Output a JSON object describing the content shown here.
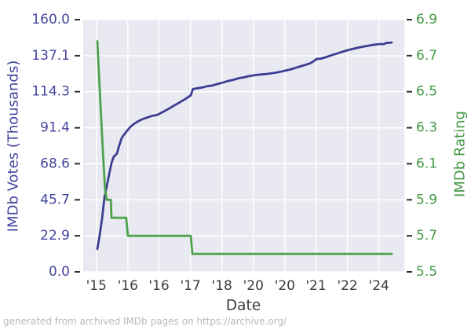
{
  "chart_data": {
    "type": "line",
    "title": "",
    "xlabel": "Date",
    "footer_note": "generated from archived IMDb pages on https://archive.org/",
    "grid": true,
    "legend": "none",
    "plot_bg": "#e9e9f1",
    "grid_color": "#ffffff",
    "tick_mark_color": "#2e2e2e",
    "x_axis": {
      "label": "Date",
      "tick_labels": [
        "'15",
        "'16",
        "'16",
        "'17",
        "'18",
        "'20",
        "'20",
        "'21",
        "'22",
        "'24"
      ],
      "tick_positions": [
        0.041,
        0.139,
        0.236,
        0.334,
        0.432,
        0.53,
        0.628,
        0.725,
        0.823,
        0.921
      ],
      "text_color": "#3c3c3c"
    },
    "left_axis": {
      "label": "IMDb Votes (Thousands)",
      "min": 0,
      "max": 160,
      "tick_values": [
        0,
        22.9,
        45.7,
        68.6,
        91.4,
        114.3,
        137.1,
        160
      ],
      "tick_labels": [
        "0.0",
        "22.9",
        "45.7",
        "68.6",
        "91.4",
        "114.3",
        "137.1",
        "160.0"
      ],
      "color": "#45459f"
    },
    "right_axis": {
      "label": "IMDb Rating",
      "min": 5.5,
      "max": 6.9,
      "tick_values": [
        5.5,
        5.7,
        5.9,
        6.1,
        6.3,
        6.5,
        6.7,
        6.9
      ],
      "tick_labels": [
        "5.5",
        "5.7",
        "5.9",
        "6.1",
        "6.3",
        "6.5",
        "6.7",
        "6.9"
      ],
      "color": "#449944"
    },
    "series": [
      {
        "name": "IMDb Votes (Thousands)",
        "axis": "left",
        "color": "#3d3d92",
        "line_width": 2.8,
        "points": [
          [
            0.044,
            14.5
          ],
          [
            0.051,
            23
          ],
          [
            0.059,
            34
          ],
          [
            0.066,
            47
          ],
          [
            0.073,
            54
          ],
          [
            0.081,
            62
          ],
          [
            0.088,
            69
          ],
          [
            0.095,
            73
          ],
          [
            0.105,
            75
          ],
          [
            0.112,
            80
          ],
          [
            0.12,
            85
          ],
          [
            0.127,
            87
          ],
          [
            0.137,
            89.5
          ],
          [
            0.147,
            92
          ],
          [
            0.159,
            94
          ],
          [
            0.171,
            95.5
          ],
          [
            0.186,
            97
          ],
          [
            0.2,
            98
          ],
          [
            0.215,
            99
          ],
          [
            0.23,
            99.5
          ],
          [
            0.244,
            101
          ],
          [
            0.262,
            103
          ],
          [
            0.279,
            105
          ],
          [
            0.296,
            107
          ],
          [
            0.313,
            109
          ],
          [
            0.328,
            111
          ],
          [
            0.335,
            112
          ],
          [
            0.342,
            116
          ],
          [
            0.357,
            116.5
          ],
          [
            0.372,
            117
          ],
          [
            0.386,
            117.8
          ],
          [
            0.403,
            118.3
          ],
          [
            0.418,
            119.2
          ],
          [
            0.433,
            120
          ],
          [
            0.45,
            121
          ],
          [
            0.467,
            121.8
          ],
          [
            0.484,
            122.8
          ],
          [
            0.501,
            123.4
          ],
          [
            0.518,
            124.2
          ],
          [
            0.535,
            124.8
          ],
          [
            0.553,
            125.2
          ],
          [
            0.57,
            125.5
          ],
          [
            0.587,
            126
          ],
          [
            0.601,
            126.4
          ],
          [
            0.616,
            127
          ],
          [
            0.628,
            127.6
          ],
          [
            0.643,
            128.3
          ],
          [
            0.66,
            129.3
          ],
          [
            0.675,
            130.3
          ],
          [
            0.692,
            131.3
          ],
          [
            0.707,
            132.3
          ],
          [
            0.719,
            133.8
          ],
          [
            0.726,
            135
          ],
          [
            0.741,
            135.3
          ],
          [
            0.758,
            136.3
          ],
          [
            0.775,
            137.5
          ],
          [
            0.792,
            138.6
          ],
          [
            0.807,
            139.6
          ],
          [
            0.824,
            140.6
          ],
          [
            0.841,
            141.5
          ],
          [
            0.858,
            142.3
          ],
          [
            0.875,
            143
          ],
          [
            0.892,
            143.6
          ],
          [
            0.907,
            144.1
          ],
          [
            0.922,
            144.5
          ],
          [
            0.936,
            144.5
          ],
          [
            0.944,
            145.2
          ],
          [
            0.961,
            145.5
          ]
        ]
      },
      {
        "name": "IMDb Rating",
        "axis": "right",
        "color": "#4da34d",
        "line_width": 2.8,
        "points": [
          [
            0.044,
            6.78
          ],
          [
            0.049,
            6.6
          ],
          [
            0.054,
            6.42
          ],
          [
            0.059,
            6.25
          ],
          [
            0.064,
            6.08
          ],
          [
            0.068,
            5.96
          ],
          [
            0.073,
            5.9
          ],
          [
            0.086,
            5.9
          ],
          [
            0.088,
            5.8
          ],
          [
            0.134,
            5.8
          ],
          [
            0.139,
            5.7
          ],
          [
            0.335,
            5.7
          ],
          [
            0.34,
            5.6
          ],
          [
            0.961,
            5.6
          ]
        ]
      }
    ]
  }
}
